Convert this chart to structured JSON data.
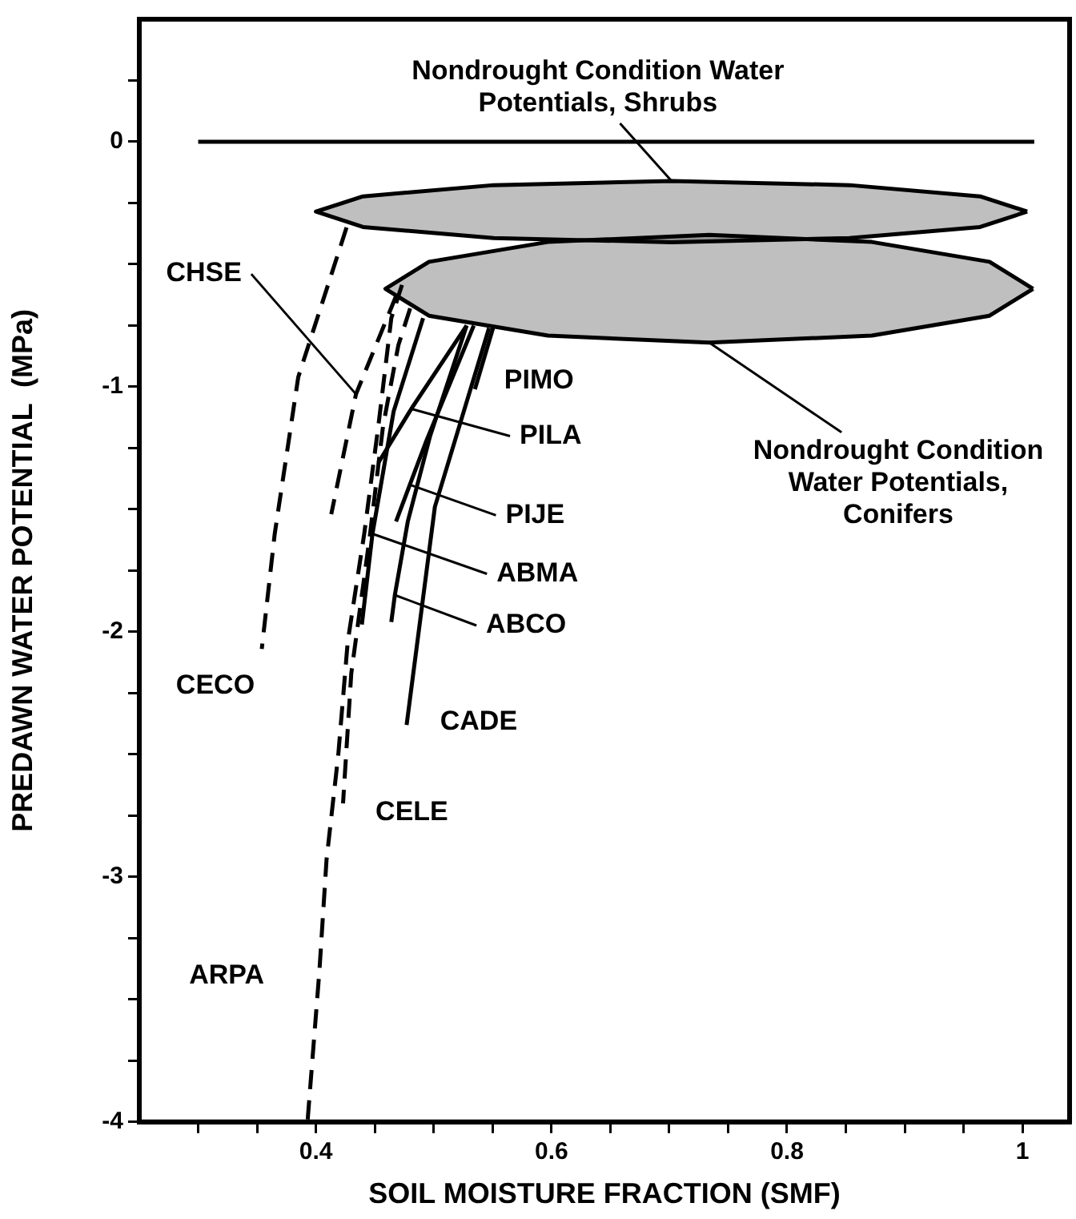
{
  "chart_data": {
    "type": "line",
    "xlabel": "SOIL MOISTURE FRACTION (SMF)",
    "ylabel": "PREDAWN WATER POTENTIAL  (MPa)",
    "xlim": [
      0.25,
      1.04
    ],
    "ylim": [
      -4,
      0.5
    ],
    "xticks": [
      {
        "value": 0.3,
        "label": null
      },
      {
        "value": 0.35,
        "label": null
      },
      0.4,
      {
        "value": 0.45,
        "label": null
      },
      {
        "value": 0.5,
        "label": null
      },
      {
        "value": 0.55,
        "label": null
      },
      0.6,
      {
        "value": 0.65,
        "label": null
      },
      {
        "value": 0.7,
        "label": null
      },
      {
        "value": 0.75,
        "label": null
      },
      0.8,
      {
        "value": 0.85,
        "label": null
      },
      {
        "value": 0.9,
        "label": null
      },
      {
        "value": 0.95,
        "label": null
      },
      1
    ],
    "yticks": [
      -4,
      {
        "value": -3.75,
        "label": null
      },
      {
        "value": -3.5,
        "label": null
      },
      {
        "value": -3.25,
        "label": null
      },
      -3,
      {
        "value": -2.75,
        "label": null
      },
      {
        "value": -2.5,
        "label": null
      },
      {
        "value": -2.25,
        "label": null
      },
      -2,
      {
        "value": -1.75,
        "label": null
      },
      {
        "value": -1.5,
        "label": null
      },
      {
        "value": -1.25,
        "label": null
      },
      -1,
      {
        "value": -0.75,
        "label": null
      },
      {
        "value": -0.5,
        "label": null
      },
      {
        "value": -0.25,
        "label": null
      },
      0,
      {
        "value": 0.25,
        "label": null
      }
    ],
    "grid": false,
    "legend": false,
    "marker": "none",
    "annotations": [
      {
        "text": "Nondrought Condition Water Potentials, Shrubs",
        "x": 0.702,
        "y": -0.16
      },
      {
        "text": "Nondrought Condition Water Potentials, Conifers",
        "x": 0.734,
        "y": -0.82
      },
      {
        "text": "CECO",
        "x": 0.354,
        "y": -2.07
      },
      {
        "text": "CHSE",
        "x": 0.434,
        "y": -1.03
      },
      {
        "text": "ARPA",
        "x": 0.403,
        "y": -3.38
      },
      {
        "text": "CELE",
        "x": 0.423,
        "y": -2.7
      },
      {
        "text": "ABMA",
        "x": 0.448,
        "y": -1.6
      },
      {
        "text": "ABCO",
        "x": 0.467,
        "y": -1.85
      },
      {
        "text": "PIJE",
        "x": 0.48,
        "y": -1.4
      },
      {
        "text": "PILA",
        "x": 0.481,
        "y": -1.09
      },
      {
        "text": "PIMO",
        "x": 0.535,
        "y": -1.01
      },
      {
        "text": "CADE",
        "x": 0.477,
        "y": -2.38
      }
    ],
    "series": [
      {
        "color": "#000000",
        "line_style": "solid",
        "x": [
          0.3,
          1.01
        ],
        "values": [
          0,
          0
        ]
      },
      {
        "type": "area",
        "color": "#000000",
        "line_style": "solid",
        "x": [
          1.004,
          0.964,
          0.853,
          0.702,
          0.551,
          0.44,
          0.4,
          0.44,
          0.551,
          0.702,
          0.853,
          0.964,
          1.004
        ],
        "values": [
          -0.285,
          -0.223,
          -0.177,
          -0.16,
          -0.177,
          -0.223,
          -0.285,
          -0.348,
          -0.393,
          -0.41,
          -0.393,
          -0.348,
          -0.285
        ]
      },
      {
        "type": "area",
        "color": "#000000",
        "line_style": "solid",
        "x": [
          1.009,
          0.972,
          0.872,
          0.734,
          0.597,
          0.496,
          0.459,
          0.496,
          0.597,
          0.734,
          0.872,
          0.972,
          1.009
        ],
        "values": [
          -0.6,
          -0.49,
          -0.409,
          -0.38,
          -0.409,
          -0.49,
          -0.6,
          -0.71,
          -0.791,
          -0.82,
          -0.791,
          -0.71,
          -0.6
        ]
      },
      {
        "color": "#000000",
        "line_style": "dashed",
        "x": [
          0.426,
          0.385,
          0.365,
          0.354
        ],
        "values": [
          -0.35,
          -0.96,
          -1.6,
          -2.07
        ]
      },
      {
        "color": "#000000",
        "line_style": "dashed",
        "x": [
          0.468,
          0.434,
          0.413
        ],
        "values": [
          -0.63,
          -1.03,
          -1.52
        ]
      },
      {
        "color": "#000000",
        "line_style": "dashed",
        "x": [
          0.393,
          0.403,
          0.409,
          0.419,
          0.427,
          0.441,
          0.453,
          0.464,
          0.474
        ],
        "values": [
          -3.99,
          -3.38,
          -2.93,
          -2.5,
          -2.04,
          -1.6,
          -1.16,
          -0.72,
          -0.57
        ]
      },
      {
        "color": "#000000",
        "line_style": "dashed",
        "x": [
          0.48,
          0.47,
          0.457,
          0.446,
          0.43,
          0.423
        ],
        "values": [
          -0.68,
          -0.83,
          -1.16,
          -1.6,
          -2.17,
          -2.7
        ]
      },
      {
        "color": "#000000",
        "line_style": "solid",
        "x": [
          0.491,
          0.466,
          0.448,
          0.439
        ],
        "values": [
          -0.72,
          -1.1,
          -1.6,
          -1.97
        ]
      },
      {
        "color": "#000000",
        "line_style": "solid",
        "x": [
          0.528,
          0.497,
          0.478,
          0.467,
          0.464
        ],
        "values": [
          -0.75,
          -1.2,
          -1.55,
          -1.85,
          -1.96
        ]
      },
      {
        "color": "#000000",
        "line_style": "solid",
        "x": [
          0.534,
          0.493,
          0.468
        ],
        "values": [
          -0.75,
          -1.23,
          -1.55
        ]
      },
      {
        "color": "#000000",
        "line_style": "solid",
        "x": [
          0.528,
          0.481,
          0.453
        ],
        "values": [
          -0.75,
          -1.09,
          -1.31
        ]
      },
      {
        "color": "#000000",
        "line_style": "solid",
        "x": [
          0.551,
          0.535
        ],
        "values": [
          -0.75,
          -1.01
        ]
      },
      {
        "color": "#000000",
        "line_style": "solid",
        "x": [
          0.547,
          0.501,
          0.477
        ],
        "values": [
          -0.76,
          -1.49,
          -2.38
        ]
      }
    ]
  }
}
